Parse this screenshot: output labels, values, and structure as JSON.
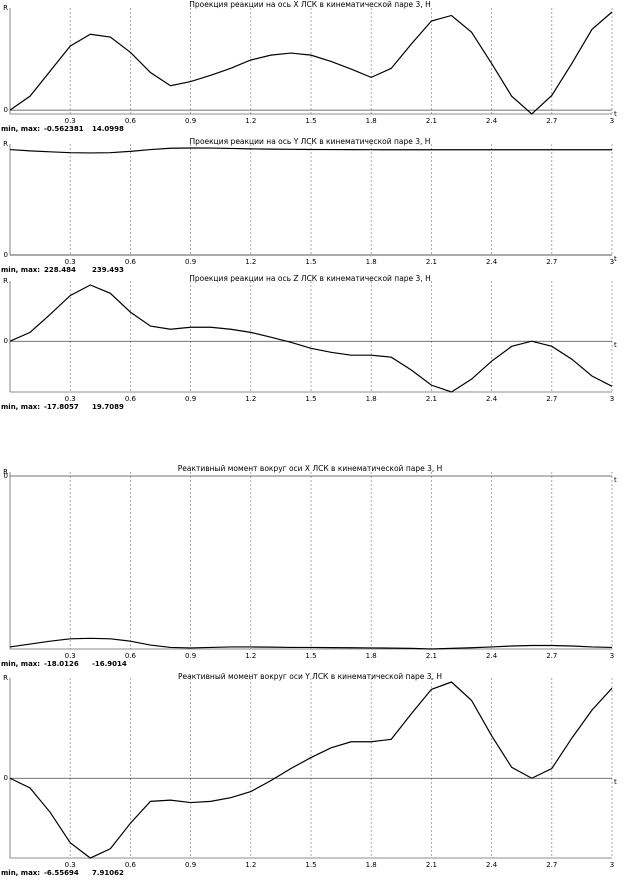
{
  "chart_data": [
    {
      "type": "line",
      "title": "Проекция реакции на ось X ЛСК в кинематической паре 3, Н",
      "y_label": "R",
      "x_label": "t",
      "minmax_label": "min, max:",
      "min": -0.562381,
      "max": 14.0998,
      "color": "#000000",
      "x": [
        0,
        0.1,
        0.2,
        0.3,
        0.4,
        0.5,
        0.6,
        0.7,
        0.8,
        0.9,
        1,
        1.1,
        1.2,
        1.3,
        1.4,
        1.5,
        1.6,
        1.7,
        1.8,
        1.9,
        2,
        2.1,
        2.2,
        2.3,
        2.4,
        2.5,
        2.6,
        2.7,
        2.8,
        2.9,
        3
      ],
      "values": [
        0,
        2.0,
        5.6,
        9.2,
        10.9,
        10.5,
        8.3,
        5.4,
        3.5,
        4.1,
        5.0,
        6.0,
        7.2,
        7.9,
        8.2,
        7.9,
        7.0,
        5.9,
        4.7,
        6.0,
        9.5,
        12.8,
        13.6,
        11.2,
        6.7,
        2.0,
        -0.562381,
        2.1,
        6.7,
        11.6,
        14.0998
      ],
      "xlim": [
        0,
        3
      ],
      "xticks": [
        0.3,
        0.6,
        0.9,
        1.2,
        1.5,
        1.8,
        2.1,
        2.4,
        2.7,
        3
      ],
      "yticks": [
        0
      ]
    },
    {
      "type": "line",
      "title": "Проекция реакции на ось Y ЛСК в кинематической паре 3, Н",
      "y_label": "R",
      "x_label": "t",
      "minmax_label": "min, max:",
      "min": 228.484,
      "max": 239.493,
      "color": "#000000",
      "x": [
        0,
        0.1,
        0.2,
        0.3,
        0.4,
        0.5,
        0.6,
        0.7,
        0.8,
        0.9,
        1,
        1.1,
        1.2,
        1.3,
        1.4,
        1.5,
        1.6,
        1.7,
        1.8,
        1.9,
        2,
        2.1,
        2.2,
        2.3,
        2.4,
        2.5,
        2.6,
        2.7,
        2.8,
        2.9,
        3
      ],
      "values": [
        236,
        233,
        231,
        229,
        228.484,
        229,
        232,
        236,
        239,
        239.493,
        239.3,
        238.5,
        237.5,
        237,
        236.5,
        236.2,
        236,
        235.8,
        235.7,
        235.6,
        235.6,
        235.5,
        235.5,
        235.5,
        235.5,
        235.5,
        235.5,
        235.5,
        235.5,
        235.5,
        235.5
      ],
      "xlim": [
        0,
        3
      ],
      "xticks": [
        0.3,
        0.6,
        0.9,
        1.2,
        1.5,
        1.8,
        2.1,
        2.4,
        2.7,
        3
      ],
      "yticks": [
        0
      ]
    },
    {
      "type": "line",
      "title": "Проекция реакции на ось Z ЛСК в кинематической паре 3, Н",
      "y_label": "R",
      "x_label": "t",
      "minmax_label": "min, max:",
      "min": -17.8057,
      "max": 19.7089,
      "color": "#000000",
      "x": [
        0,
        0.1,
        0.2,
        0.3,
        0.4,
        0.5,
        0.6,
        0.7,
        0.8,
        0.9,
        1,
        1.1,
        1.2,
        1.3,
        1.4,
        1.5,
        1.6,
        1.7,
        1.8,
        1.9,
        2,
        2.1,
        2.2,
        2.3,
        2.4,
        2.5,
        2.6,
        2.7,
        2.8,
        2.9,
        3
      ],
      "values": [
        0,
        3.1,
        9.4,
        16,
        19.7089,
        16.8,
        10.2,
        5.3,
        4.2,
        4.9,
        4.9,
        4.2,
        3.1,
        1.4,
        -0.4,
        -2.5,
        -3.9,
        -4.9,
        -4.9,
        -5.6,
        -10.1,
        -15.4,
        -17.8057,
        -13.3,
        -7,
        -1.8,
        0,
        -1.8,
        -6.3,
        -12.2,
        -15.8
      ],
      "xlim": [
        0,
        3
      ],
      "xticks": [
        0.3,
        0.6,
        0.9,
        1.2,
        1.5,
        1.8,
        2.1,
        2.4,
        2.7,
        3
      ],
      "yticks": [
        0
      ]
    },
    {
      "type": "line",
      "title": "Реактивный момент вокруг оси X ЛСК в кинематической паре 3, Н",
      "y_label": "R",
      "x_label": "t",
      "minmax_label": "min, max:",
      "min": -18.0126,
      "max": -16.9014,
      "color": "#000000",
      "x": [
        0,
        0.1,
        0.2,
        0.3,
        0.4,
        0.5,
        0.6,
        0.7,
        0.8,
        0.9,
        1,
        1.1,
        1.2,
        1.3,
        1.4,
        1.5,
        1.6,
        1.7,
        1.8,
        1.9,
        2,
        2.1,
        2.2,
        2.3,
        2.4,
        2.5,
        2.6,
        2.7,
        2.8,
        2.9,
        3
      ],
      "values": [
        -17.8,
        -17.5,
        -17.2,
        -16.95,
        -16.9014,
        -16.95,
        -17.2,
        -17.6,
        -17.85,
        -17.9,
        -17.85,
        -17.8,
        -17.8,
        -17.82,
        -17.85,
        -17.85,
        -17.87,
        -17.88,
        -17.9,
        -17.92,
        -17.95,
        -18.0126,
        -17.95,
        -17.88,
        -17.8,
        -17.7,
        -17.65,
        -17.65,
        -17.7,
        -17.8,
        -17.85
      ],
      "xlim": [
        0,
        3
      ],
      "xticks": [
        0.3,
        0.6,
        0.9,
        1.2,
        1.5,
        1.8,
        2.1,
        2.4,
        2.7,
        3
      ],
      "yticks": [
        0
      ]
    },
    {
      "type": "line",
      "title": "Реактивный момент вокруг оси Y ЛСК в кинематической паре 3, Н",
      "y_label": "R",
      "x_label": "t",
      "minmax_label": "min, max:",
      "min": -6.55694,
      "max": 7.91062,
      "color": "#000000",
      "x": [
        0,
        0.1,
        0.2,
        0.3,
        0.4,
        0.5,
        0.6,
        0.7,
        0.8,
        0.9,
        1,
        1.1,
        1.2,
        1.3,
        1.4,
        1.5,
        1.6,
        1.7,
        1.8,
        1.9,
        2,
        2.1,
        2.2,
        2.3,
        2.4,
        2.5,
        2.6,
        2.7,
        2.8,
        2.9,
        3
      ],
      "values": [
        0,
        -0.8,
        -2.8,
        -5.3,
        -6.55694,
        -5.8,
        -3.7,
        -1.9,
        -1.8,
        -2.0,
        -1.9,
        -1.6,
        -1.1,
        -0.2,
        0.8,
        1.7,
        2.5,
        3.0,
        3.0,
        3.2,
        5.3,
        7.3,
        7.91062,
        6.4,
        3.5,
        0.9,
        0,
        0.8,
        3.3,
        5.6,
        7.4
      ],
      "xlim": [
        0,
        3
      ],
      "xticks": [
        0.3,
        0.6,
        0.9,
        1.2,
        1.5,
        1.8,
        2.1,
        2.4,
        2.7,
        3
      ],
      "yticks": [
        0
      ]
    }
  ]
}
